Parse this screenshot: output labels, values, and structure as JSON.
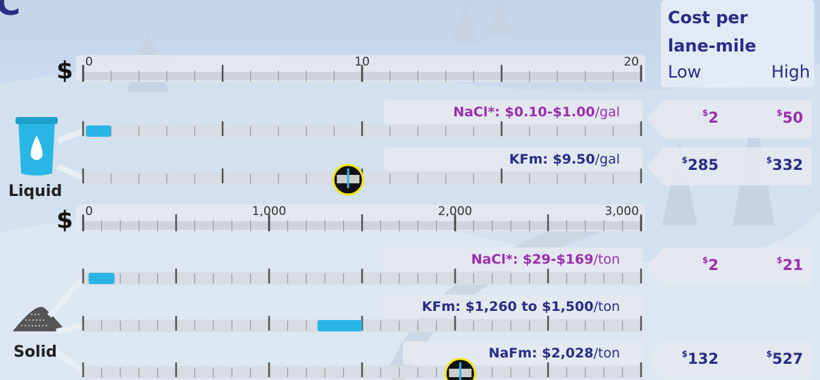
{
  "title_fragment": "C",
  "currency": "$",
  "cost_header": {
    "title_lines": [
      "Cost per",
      "lane-mile"
    ],
    "low": "Low",
    "high": "High"
  },
  "groups": [
    {
      "name": "Liquid",
      "axis": {
        "xlim": [
          0,
          20
        ],
        "ticks": [
          0,
          10,
          20
        ],
        "minor_step": 1,
        "major_step": 5
      },
      "rows": [
        {
          "label": "NaCl*: $0.10-$1.00",
          "unit": "/gal",
          "range": [
            0.1,
            1.0
          ],
          "color": "#9b2fae",
          "cost": [
            2,
            50
          ]
        },
        {
          "label": "KFm: $9.50",
          "unit": "/gal",
          "value": 9.5,
          "color": "#2a2d86",
          "cost": [
            285,
            332
          ]
        }
      ]
    },
    {
      "name": "Solid",
      "axis": {
        "xlim": [
          0,
          3000
        ],
        "ticks": [
          0,
          {
            "value": 1000,
            "label": "1,000"
          },
          {
            "value": 2000,
            "label": "2,000"
          },
          {
            "value": 3000,
            "label": "3,000"
          }
        ],
        "minor_step": 100,
        "major_step": 500
      },
      "rows": [
        {
          "label": "NaCl*: $29-$169",
          "unit": "/ton",
          "range": [
            29,
            169
          ],
          "color": "#9b2fae",
          "cost": [
            2,
            21
          ]
        },
        {
          "label": "KFm: $1,260 to $1,500",
          "unit": "/ton",
          "range": [
            1260,
            1500
          ],
          "color": "#2a2d86"
        },
        {
          "label": "NaFm: $2,028",
          "unit": "/ton",
          "value": 2028,
          "color": "#2a2d86",
          "cost": [
            132,
            527
          ]
        }
      ]
    }
  ]
}
